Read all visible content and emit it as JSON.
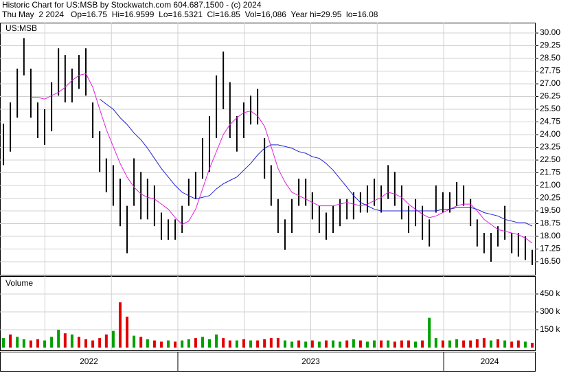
{
  "chart_data": {
    "type": "stock",
    "title": "Historic Chart for US:MSB by Stockwatch.com 604.687.1500 - (c) 2024",
    "subtitle": "Thu May  2 2024   Op=16.75  Hi=16.9599  Lo=16.5321  Cl=16.85  Vol=16,086  Year hi=29.95  lo=16.08",
    "symbol": "US:MSB",
    "xlim": [
      2022.331,
      2024.346
    ],
    "xticks": [
      2023,
      2024
    ],
    "xgrid": [
      2022.5,
      2022.75,
      2023,
      2023.25,
      2023.5,
      2023.75,
      2024,
      2024.25
    ],
    "period_labels": [
      "2022",
      "2023",
      "2024"
    ],
    "grid": true,
    "bar_color": "#000000",
    "x": [
      2022.344,
      2022.37,
      2022.396,
      2022.421,
      2022.447,
      2022.473,
      2022.499,
      2022.525,
      2022.551,
      2022.576,
      2022.602,
      2022.628,
      2022.654,
      2022.68,
      2022.706,
      2022.731,
      2022.757,
      2022.783,
      2022.809,
      2022.835,
      2022.861,
      2022.886,
      2022.912,
      2022.938,
      2022.964,
      2022.99,
      2023.016,
      2023.041,
      2023.067,
      2023.093,
      2023.119,
      2023.145,
      2023.171,
      2023.196,
      2023.222,
      2023.248,
      2023.274,
      2023.3,
      2023.326,
      2023.351,
      2023.377,
      2023.403,
      2023.429,
      2023.455,
      2023.481,
      2023.506,
      2023.532,
      2023.558,
      2023.584,
      2023.61,
      2023.636,
      2023.661,
      2023.687,
      2023.713,
      2023.739,
      2023.765,
      2023.791,
      2023.816,
      2023.842,
      2023.868,
      2023.894,
      2023.92,
      2023.946,
      2023.971,
      2023.997,
      2024.023,
      2024.049,
      2024.075,
      2024.101,
      2024.126,
      2024.152,
      2024.178,
      2024.204,
      2024.23,
      2024.256,
      2024.281,
      2024.307,
      2024.333
    ],
    "high": [
      24.65,
      25.9,
      27.9,
      29.7,
      27.9,
      25.9,
      25.5,
      27.1,
      29.1,
      28.7,
      27.9,
      28.7,
      29.1,
      25.9,
      24.2,
      22.6,
      22.2,
      21.4,
      19.8,
      22.6,
      21.8,
      21.4,
      21.0,
      19.4,
      19.0,
      19.0,
      19.8,
      21.4,
      21.8,
      23.8,
      25.1,
      27.5,
      28.9,
      27.1,
      25.1,
      25.9,
      26.3,
      26.7,
      23.8,
      22.2,
      20.2,
      19.0,
      20.2,
      21.4,
      21.4,
      20.6,
      19.8,
      19.4,
      19.8,
      20.2,
      20.2,
      20.6,
      20.6,
      21.0,
      21.4,
      21.0,
      22.2,
      21.8,
      21.0,
      19.8,
      20.2,
      19.8,
      19.0,
      21.0,
      20.6,
      20.6,
      21.2,
      21.0,
      20.2,
      19.0,
      18.2,
      18.2,
      18.6,
      19.8,
      18.2,
      18.2,
      18.0,
      17.2
    ],
    "low": [
      22.2,
      23.0,
      25.0,
      27.5,
      25.0,
      23.8,
      23.4,
      24.2,
      26.3,
      25.9,
      25.9,
      26.7,
      26.3,
      23.8,
      21.8,
      20.6,
      19.8,
      18.6,
      17.0,
      19.8,
      19.0,
      19.0,
      18.6,
      17.8,
      17.8,
      17.8,
      18.2,
      19.8,
      20.2,
      21.4,
      21.8,
      23.8,
      25.5,
      23.8,
      23.0,
      23.8,
      24.6,
      24.6,
      21.4,
      19.8,
      18.2,
      17.2,
      18.2,
      19.8,
      19.8,
      19.0,
      18.2,
      17.8,
      18.2,
      18.6,
      19.0,
      19.0,
      19.4,
      19.4,
      19.8,
      19.4,
      20.2,
      19.8,
      19.0,
      18.2,
      18.6,
      17.8,
      17.4,
      19.4,
      19.4,
      19.4,
      19.8,
      19.8,
      18.6,
      17.4,
      17.0,
      16.5,
      17.4,
      17.8,
      17.0,
      16.8,
      16.6,
      16.3
    ],
    "ma_short": {
      "color": "#e020e0",
      "values": [
        null,
        null,
        null,
        null,
        26.2,
        26.2,
        26.1,
        26.3,
        26.5,
        26.8,
        27.2,
        27.5,
        27.6,
        26.8,
        25.5,
        24.3,
        23.3,
        22.3,
        21.5,
        20.9,
        20.5,
        20.3,
        20.2,
        19.9,
        19.6,
        19.1,
        18.7,
        18.9,
        19.6,
        20.8,
        22.0,
        23.0,
        24.0,
        24.6,
        25.0,
        25.3,
        25.4,
        25.1,
        24.5,
        23.3,
        22.0,
        21.2,
        20.6,
        20.4,
        20.2,
        20.0,
        19.8,
        19.8,
        19.8,
        19.9,
        20.0,
        19.9,
        19.8,
        19.9,
        20.1,
        20.3,
        20.6,
        20.5,
        20.3,
        19.9,
        19.6,
        19.3,
        19.1,
        19.2,
        19.4,
        19.6,
        19.8,
        19.9,
        19.9,
        19.5,
        19.0,
        18.7,
        18.4,
        18.3,
        18.2,
        18.1,
        17.9,
        17.6
      ]
    },
    "ma_long": {
      "color": "#2020d0",
      "values": [
        null,
        null,
        null,
        null,
        null,
        null,
        null,
        null,
        null,
        null,
        null,
        null,
        null,
        null,
        26.1,
        25.8,
        25.5,
        25.0,
        24.6,
        24.1,
        23.7,
        23.2,
        22.6,
        22.0,
        21.5,
        21.0,
        20.6,
        20.4,
        20.2,
        20.3,
        20.4,
        20.8,
        21.1,
        21.3,
        21.5,
        21.9,
        22.3,
        22.8,
        23.2,
        23.4,
        23.4,
        23.3,
        23.2,
        23.0,
        22.9,
        22.7,
        22.6,
        22.3,
        21.9,
        21.4,
        20.9,
        20.4,
        20.0,
        19.8,
        19.6,
        19.5,
        19.5,
        19.5,
        19.5,
        19.5,
        19.5,
        19.5,
        19.5,
        19.5,
        19.6,
        19.6,
        19.7,
        19.7,
        19.7,
        19.6,
        19.4,
        19.3,
        19.2,
        19.0,
        18.9,
        18.8,
        18.8,
        18.6
      ]
    },
    "ylim": [
      15.73,
      30.61
    ],
    "yticks": [
      {
        "value": 16.5,
        "label": "16.50"
      },
      {
        "value": 17.25,
        "label": "17.25"
      },
      {
        "value": 18,
        "label": "18.00"
      },
      {
        "value": 18.75,
        "label": "18.75"
      },
      {
        "value": 19.5,
        "label": "19.50"
      },
      {
        "value": 20.25,
        "label": "20.25"
      },
      {
        "value": 21,
        "label": "21.00"
      },
      {
        "value": 21.75,
        "label": "21.75"
      },
      {
        "value": 22.5,
        "label": "22.50"
      },
      {
        "value": 23.25,
        "label": "23.25"
      },
      {
        "value": 24,
        "label": "24.00"
      },
      {
        "value": 24.75,
        "label": "24.75"
      },
      {
        "value": 25.5,
        "label": "25.50"
      },
      {
        "value": 26.25,
        "label": "26.25"
      },
      {
        "value": 27,
        "label": "27.00"
      },
      {
        "value": 27.75,
        "label": "27.75"
      },
      {
        "value": 28.5,
        "label": "28.50"
      },
      {
        "value": 29.25,
        "label": "29.25"
      },
      {
        "value": 30,
        "label": "30.00"
      }
    ],
    "volume": {
      "title": "Volume",
      "up_color": "#00a000",
      "down_color": "#e00000",
      "ylim": [
        0,
        600000
      ],
      "yticks": [
        {
          "value": 150000,
          "label": "150 k"
        },
        {
          "value": 300000,
          "label": "300 k"
        },
        {
          "value": 450000,
          "label": "450 k"
        }
      ],
      "values": [
        80000,
        110000,
        90000,
        70000,
        60000,
        70000,
        60000,
        90000,
        150000,
        120000,
        110000,
        90000,
        70000,
        60000,
        80000,
        110000,
        140000,
        380000,
        260000,
        100000,
        90000,
        70000,
        60000,
        50000,
        60000,
        50000,
        60000,
        70000,
        80000,
        90000,
        70000,
        110000,
        80000,
        60000,
        60000,
        70000,
        60000,
        60000,
        70000,
        80000,
        80000,
        60000,
        50000,
        60000,
        50000,
        60000,
        50000,
        60000,
        60000,
        50000,
        60000,
        70000,
        60000,
        50000,
        60000,
        60000,
        60000,
        50000,
        60000,
        60000,
        50000,
        60000,
        250000,
        80000,
        60000,
        60000,
        70000,
        60000,
        60000,
        70000,
        80000,
        60000,
        70000,
        60000,
        50000,
        60000,
        50000,
        40000
      ],
      "up": [
        true,
        false,
        true,
        true,
        false,
        false,
        true,
        true,
        true,
        false,
        true,
        false,
        false,
        false,
        false,
        false,
        true,
        false,
        false,
        true,
        false,
        true,
        false,
        false,
        true,
        false,
        true,
        true,
        false,
        true,
        true,
        true,
        false,
        false,
        true,
        false,
        true,
        false,
        false,
        false,
        false,
        true,
        true,
        false,
        true,
        false,
        true,
        false,
        true,
        true,
        false,
        true,
        false,
        true,
        true,
        false,
        true,
        false,
        false,
        false,
        true,
        false,
        true,
        true,
        false,
        true,
        true,
        false,
        false,
        false,
        false,
        true,
        false,
        true,
        false,
        false,
        true,
        false
      ]
    }
  }
}
